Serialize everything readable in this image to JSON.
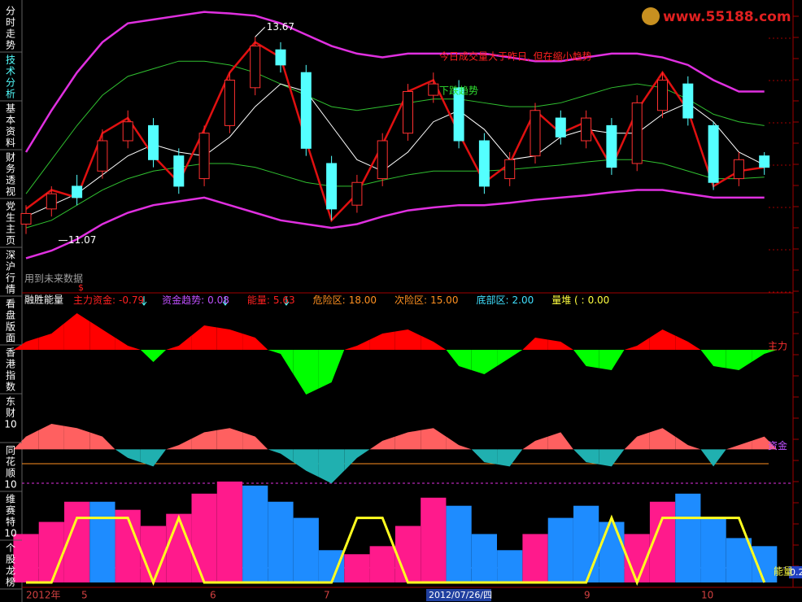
{
  "sidebar": {
    "tabs": [
      [
        "分",
        "时",
        "走",
        "势"
      ],
      [
        "技",
        "术",
        "分",
        "析"
      ],
      [
        "基",
        "本",
        "资",
        "料"
      ],
      [
        "财",
        "务",
        "透",
        "视"
      ],
      [
        "党",
        "生",
        "主",
        "页"
      ],
      [
        "深",
        "沪",
        "行",
        "情"
      ],
      [
        "看",
        "盘",
        "版",
        "面"
      ],
      [
        "香",
        "港",
        "指",
        "数"
      ],
      [
        "东",
        "财",
        "10"
      ],
      [
        "同",
        "花",
        "顺",
        "10"
      ],
      [
        "维",
        "赛",
        "特",
        "10"
      ],
      [
        "个",
        "股",
        "龙",
        "榜"
      ]
    ]
  },
  "logo": "www.55188.com",
  "x_axis": {
    "labels": [
      "2012年",
      "5",
      "6",
      "7",
      "2012/07/26/四",
      "9",
      "10"
    ]
  },
  "chart_data": [
    {
      "type": "candlestick",
      "annotations": [
        "今日成交量大于昨日, 但在缩小趋势",
        "下跌趋势",
        "用到未来数据",
        "$"
      ],
      "ylim": [
        10.4,
        14.05
      ],
      "up_color": "#ff3030",
      "down_color": "#54ffff",
      "open": [
        11.2,
        11.4,
        11.7,
        11.9,
        12.3,
        12.5,
        12.1,
        11.8,
        12.5,
        13.0,
        13.5,
        13.2,
        12.0,
        11.45,
        11.8,
        12.4,
        12.9,
        13.0,
        12.3,
        11.8,
        12.1,
        12.6,
        12.3,
        12.5,
        12.0,
        12.7,
        13.05,
        12.5,
        11.8,
        12.1
      ],
      "high": [
        11.45,
        11.7,
        11.85,
        12.45,
        12.7,
        12.6,
        12.2,
        12.5,
        13.2,
        13.67,
        13.6,
        13.3,
        12.1,
        11.85,
        12.4,
        13.05,
        13.2,
        13.1,
        12.4,
        12.15,
        12.8,
        12.7,
        12.7,
        12.6,
        12.9,
        13.2,
        13.15,
        12.55,
        12.15,
        12.15
      ],
      "low": [
        11.07,
        11.3,
        11.45,
        11.8,
        12.2,
        11.95,
        11.6,
        11.7,
        12.4,
        12.9,
        13.2,
        12.1,
        11.25,
        11.35,
        11.7,
        12.3,
        12.8,
        12.2,
        11.6,
        11.7,
        12.0,
        12.25,
        12.2,
        11.85,
        11.9,
        12.6,
        12.5,
        11.65,
        11.7,
        11.85
      ],
      "close": [
        11.34,
        11.6,
        11.55,
        12.3,
        12.55,
        12.05,
        11.7,
        12.4,
        13.1,
        13.55,
        13.3,
        12.2,
        11.4,
        11.75,
        12.3,
        12.95,
        13.05,
        12.3,
        11.7,
        12.05,
        12.7,
        12.35,
        12.6,
        11.95,
        12.8,
        13.1,
        12.6,
        11.75,
        12.05,
        11.95
      ],
      "lines": [
        {
          "color": "#e030e0",
          "values": [
            12.15,
            12.7,
            13.2,
            13.6,
            13.85,
            13.9,
            13.95,
            14.0,
            13.98,
            13.95,
            13.85,
            13.7,
            13.55,
            13.45,
            13.4,
            13.45,
            13.45,
            13.45,
            13.45,
            13.4,
            13.35,
            13.35,
            13.4,
            13.45,
            13.45,
            13.4,
            13.3,
            13.1,
            12.95,
            12.95
          ]
        },
        {
          "color": "#e030e0",
          "values": [
            10.75,
            10.85,
            11.0,
            11.2,
            11.35,
            11.45,
            11.5,
            11.55,
            11.45,
            11.35,
            11.25,
            11.2,
            11.15,
            11.2,
            11.3,
            11.38,
            11.42,
            11.45,
            11.45,
            11.48,
            11.52,
            11.55,
            11.58,
            11.62,
            11.65,
            11.65,
            11.6,
            11.55,
            11.55,
            11.55
          ]
        },
        {
          "color": "#30c030",
          "values": [
            11.6,
            12.05,
            12.5,
            12.9,
            13.15,
            13.25,
            13.35,
            13.35,
            13.3,
            13.2,
            13.05,
            12.9,
            12.75,
            12.7,
            12.75,
            12.8,
            12.85,
            12.85,
            12.8,
            12.75,
            12.75,
            12.8,
            12.9,
            13.0,
            13.05,
            13.0,
            12.85,
            12.65,
            12.55,
            12.5
          ]
        },
        {
          "color": "#30c030",
          "values": [
            11.15,
            11.25,
            11.45,
            11.65,
            11.8,
            11.9,
            11.95,
            12.0,
            12.0,
            11.95,
            11.85,
            11.75,
            11.7,
            11.7,
            11.78,
            11.85,
            11.9,
            11.9,
            11.9,
            11.92,
            11.95,
            11.98,
            12.02,
            12.05,
            12.05,
            12.0,
            11.9,
            11.8,
            11.8,
            11.82
          ]
        },
        {
          "color": "#ffffff",
          "values": [
            11.3,
            11.45,
            11.6,
            11.85,
            12.1,
            12.25,
            12.15,
            12.1,
            12.35,
            12.75,
            13.05,
            12.95,
            12.5,
            12.05,
            11.9,
            12.15,
            12.55,
            12.7,
            12.45,
            12.05,
            12.1,
            12.35,
            12.45,
            12.4,
            12.4,
            12.65,
            12.8,
            12.55,
            12.15,
            11.98
          ]
        },
        {
          "color": "#e01010",
          "values": [
            11.4,
            11.65,
            11.55,
            12.4,
            12.6,
            12.1,
            11.75,
            12.45,
            13.2,
            13.6,
            13.4,
            12.3,
            11.25,
            11.6,
            12.25,
            12.95,
            13.1,
            12.4,
            11.75,
            12.0,
            12.7,
            12.4,
            12.55,
            11.95,
            12.7,
            13.2,
            12.7,
            11.7,
            11.9,
            11.95
          ]
        }
      ]
    },
    {
      "type": "area",
      "title": "融胜能量",
      "readouts": [
        {
          "name": "主力资金:",
          "value": -0.79,
          "color": "#ff2020"
        },
        {
          "name": "资金趋势:",
          "value": 0.08,
          "color": "#c050ff"
        },
        {
          "name": "能量:",
          "value": 5.63,
          "color": "#ff2020"
        },
        {
          "name": "危险区:",
          "value": {
            "value": 18,
            "label": "18.00"
          },
          "color": "#ff9020"
        },
        {
          "name": "次险区:",
          "value": {
            "value": 15,
            "label": "15.00"
          },
          "color": "#ff9020"
        },
        {
          "name": "底部区:",
          "value": {
            "value": 2,
            "label": "2.00"
          },
          "color": "#40e0ff"
        },
        {
          "name": "量堆 ( :",
          "value": {
            "value": 0,
            "label": "0.00"
          },
          "color": "#ffff40"
        }
      ],
      "ylim": [
        -60,
        50
      ],
      "series": [
        {
          "name": "主力",
          "colors": [
            "#ff0000",
            "#00ff00"
          ],
          "label_color": "#ff3030",
          "values": [
            10,
            20,
            45,
            25,
            5,
            -15,
            5,
            30,
            25,
            15,
            -5,
            -55,
            -40,
            5,
            20,
            25,
            10,
            -20,
            -30,
            -10,
            15,
            10,
            -20,
            -25,
            5,
            25,
            10,
            -20,
            -25,
            -5
          ]
        }
      ]
    },
    {
      "type": "area",
      "ylim": [
        -55,
        50
      ],
      "series": [
        {
          "name": "资金",
          "colors": [
            "#ff6060",
            "#20b0b0"
          ],
          "label_color": "#c050ff",
          "values": [
            15,
            30,
            25,
            15,
            -10,
            -20,
            5,
            20,
            25,
            15,
            -5,
            -25,
            -40,
            -10,
            10,
            20,
            25,
            5,
            -15,
            -20,
            10,
            20,
            -15,
            -20,
            15,
            25,
            5,
            -20,
            5,
            15
          ]
        }
      ]
    },
    {
      "type": "bar",
      "ylim": [
        0,
        135
      ],
      "readout": 0.2,
      "series": [
        {
          "name": "能量",
          "values": [
            60,
            75,
            100,
            100,
            90,
            70,
            85,
            110,
            125,
            120,
            100,
            80,
            40,
            35,
            45,
            70,
            105,
            95,
            60,
            40,
            60,
            80,
            95,
            75,
            60,
            100,
            110,
            80,
            55,
            45
          ],
          "colors": [
            "#ff1a8c",
            "#ff1a8c",
            "#ff1a8c",
            "#1e8cff",
            "#ff1a8c",
            "#ff1a8c",
            "#ff1a8c",
            "#ff1a8c",
            "#ff1a8c",
            "#1e8cff",
            "#1e8cff",
            "#1e8cff",
            "#1e8cff",
            "#ff1a8c",
            "#ff1a8c",
            "#ff1a8c",
            "#ff1a8c",
            "#1e8cff",
            "#1e8cff",
            "#1e8cff",
            "#ff1a8c",
            "#1e8cff",
            "#1e8cff",
            "#1e8cff",
            "#ff1a8c",
            "#ff1a8c",
            "#1e8cff",
            "#1e8cff",
            "#1e8cff",
            "#1e8cff"
          ]
        },
        {
          "color": "#ffff20",
          "values": [
            0,
            0,
            80,
            80,
            80,
            0,
            80,
            0,
            0,
            0,
            0,
            0,
            0,
            80,
            80,
            0,
            0,
            0,
            0,
            0,
            0,
            0,
            0,
            80,
            0,
            80,
            80,
            80,
            80,
            0
          ]
        }
      ]
    }
  ]
}
